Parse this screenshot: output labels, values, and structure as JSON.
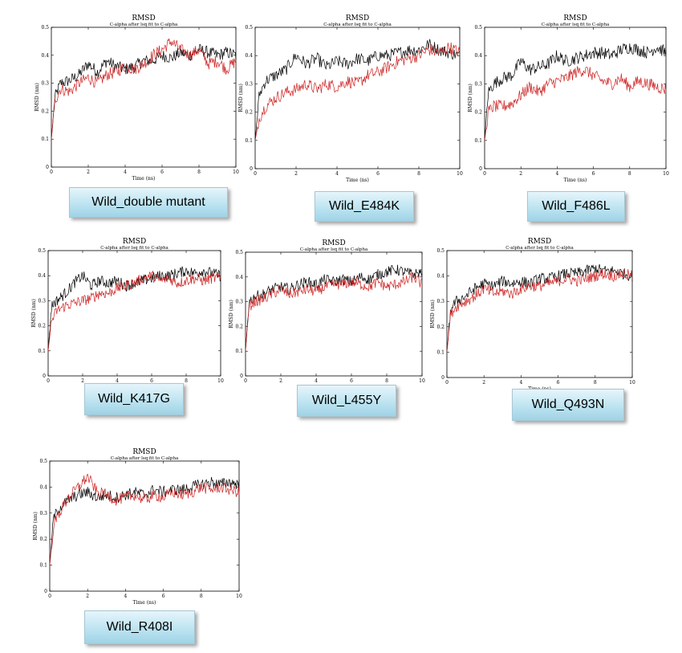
{
  "chart_data": [
    {
      "type": "line",
      "title": "RMSD",
      "subtitle": "C-alpha after lsq fit to C-alpha",
      "xlabel": "Time (ns)",
      "ylabel": "RMSD (nm)",
      "xlim": [
        0,
        10
      ],
      "ylim": [
        0,
        0.5
      ],
      "xticks": [
        "0",
        "2",
        "4",
        "6",
        "8",
        "10"
      ],
      "yticks": [
        "0",
        "0.1",
        "0.2",
        "0.3",
        "0.4",
        "0.5"
      ],
      "caption": "Wild_double mutant",
      "series": [
        {
          "color": "#000000",
          "x": [
            0,
            0.2,
            0.5,
            1,
            1.5,
            2,
            2.5,
            3,
            3.5,
            4,
            4.5,
            5,
            5.5,
            6,
            6.5,
            7,
            7.5,
            8,
            8.5,
            9,
            9.5,
            10
          ],
          "y": [
            0.1,
            0.25,
            0.3,
            0.31,
            0.33,
            0.37,
            0.34,
            0.38,
            0.36,
            0.35,
            0.36,
            0.38,
            0.38,
            0.4,
            0.39,
            0.41,
            0.4,
            0.42,
            0.41,
            0.4,
            0.41,
            0.4
          ]
        },
        {
          "color": "#cc2222",
          "x": [
            0,
            0.2,
            0.5,
            1,
            1.5,
            2,
            2.5,
            3,
            3.5,
            4,
            4.5,
            5,
            5.5,
            6,
            6.5,
            7,
            7.5,
            8,
            8.5,
            9,
            9.5,
            10
          ],
          "y": [
            0.1,
            0.24,
            0.28,
            0.27,
            0.3,
            0.32,
            0.3,
            0.33,
            0.34,
            0.36,
            0.35,
            0.37,
            0.4,
            0.42,
            0.45,
            0.42,
            0.4,
            0.42,
            0.37,
            0.38,
            0.35,
            0.38
          ]
        }
      ]
    },
    {
      "type": "line",
      "title": "RMSD",
      "subtitle": "C-alpha after lsq fit to C-alpha",
      "xlabel": "Time (ns)",
      "ylabel": "RMSD (nm)",
      "xlim": [
        0,
        10
      ],
      "ylim": [
        0,
        0.5
      ],
      "xticks": [
        "0",
        "2",
        "4",
        "6",
        "8",
        "10"
      ],
      "yticks": [
        "0",
        "0.1",
        "0.2",
        "0.3",
        "0.4",
        "0.5"
      ],
      "caption": "Wild_E484K",
      "series": [
        {
          "color": "#000000",
          "x": [
            0,
            0.2,
            0.5,
            1,
            1.5,
            2,
            2.5,
            3,
            3.5,
            4,
            4.5,
            5,
            5.5,
            6,
            6.5,
            7,
            7.5,
            8,
            8.5,
            9,
            9.5,
            10
          ],
          "y": [
            0.1,
            0.26,
            0.31,
            0.33,
            0.35,
            0.4,
            0.37,
            0.39,
            0.36,
            0.38,
            0.37,
            0.39,
            0.38,
            0.4,
            0.4,
            0.41,
            0.42,
            0.42,
            0.44,
            0.42,
            0.41,
            0.4
          ]
        },
        {
          "color": "#cc2222",
          "x": [
            0,
            0.2,
            0.5,
            1,
            1.5,
            2,
            2.5,
            3,
            3.5,
            4,
            4.5,
            5,
            5.5,
            6,
            6.5,
            7,
            7.5,
            8,
            8.5,
            9,
            9.5,
            10
          ],
          "y": [
            0.1,
            0.18,
            0.22,
            0.25,
            0.27,
            0.28,
            0.3,
            0.28,
            0.3,
            0.29,
            0.31,
            0.3,
            0.33,
            0.34,
            0.36,
            0.38,
            0.39,
            0.4,
            0.42,
            0.41,
            0.43,
            0.41
          ]
        }
      ]
    },
    {
      "type": "line",
      "title": "RMSD",
      "subtitle": "C-alpha after lsq fit to C-alpha",
      "xlabel": "Time (ns)",
      "ylabel": "RMSD (nm)",
      "xlim": [
        0,
        10
      ],
      "ylim": [
        0,
        0.5
      ],
      "xticks": [
        "0",
        "2",
        "4",
        "6",
        "8",
        "10"
      ],
      "yticks": [
        "0",
        "0.1",
        "0.2",
        "0.3",
        "0.4",
        "0.5"
      ],
      "caption": "Wild_F486L",
      "series": [
        {
          "color": "#000000",
          "x": [
            0,
            0.2,
            0.5,
            1,
            1.5,
            2,
            2.5,
            3,
            3.5,
            4,
            4.5,
            5,
            5.5,
            6,
            6.5,
            7,
            7.5,
            8,
            8.5,
            9,
            9.5,
            10
          ],
          "y": [
            0.1,
            0.27,
            0.3,
            0.32,
            0.33,
            0.38,
            0.35,
            0.36,
            0.37,
            0.4,
            0.38,
            0.39,
            0.4,
            0.41,
            0.41,
            0.4,
            0.42,
            0.43,
            0.42,
            0.41,
            0.43,
            0.41
          ]
        },
        {
          "color": "#cc2222",
          "x": [
            0,
            0.2,
            0.5,
            1,
            1.5,
            2,
            2.5,
            3,
            3.5,
            4,
            4.5,
            5,
            5.5,
            6,
            6.5,
            7,
            7.5,
            8,
            8.5,
            9,
            9.5,
            10
          ],
          "y": [
            0.1,
            0.2,
            0.22,
            0.22,
            0.23,
            0.26,
            0.29,
            0.27,
            0.3,
            0.31,
            0.32,
            0.34,
            0.35,
            0.33,
            0.31,
            0.3,
            0.32,
            0.29,
            0.31,
            0.3,
            0.29,
            0.28
          ]
        }
      ]
    },
    {
      "type": "line",
      "title": "RMSD",
      "subtitle": "C-alpha after lsq fit to C-alpha",
      "xlabel": "Time (ns)",
      "ylabel": "RMSD (nm)",
      "xlim": [
        0,
        10
      ],
      "ylim": [
        0,
        0.5
      ],
      "xticks": [
        "0",
        "2",
        "4",
        "6",
        "8",
        "10"
      ],
      "yticks": [
        "0",
        "0.1",
        "0.2",
        "0.3",
        "0.4",
        "0.5"
      ],
      "caption": "Wild_K417G",
      "series": [
        {
          "color": "#000000",
          "x": [
            0,
            0.2,
            0.5,
            1,
            1.5,
            2,
            2.5,
            3,
            3.5,
            4,
            4.5,
            5,
            5.5,
            6,
            6.5,
            7,
            7.5,
            8,
            8.5,
            9,
            9.5,
            10
          ],
          "y": [
            0.1,
            0.28,
            0.3,
            0.33,
            0.37,
            0.4,
            0.36,
            0.38,
            0.37,
            0.38,
            0.36,
            0.37,
            0.38,
            0.39,
            0.4,
            0.4,
            0.41,
            0.42,
            0.41,
            0.42,
            0.41,
            0.4
          ]
        },
        {
          "color": "#cc2222",
          "x": [
            0,
            0.2,
            0.5,
            1,
            1.5,
            2,
            2.5,
            3,
            3.5,
            4,
            4.5,
            5,
            5.5,
            6,
            6.5,
            7,
            7.5,
            8,
            8.5,
            9,
            9.5,
            10
          ],
          "y": [
            0.1,
            0.22,
            0.26,
            0.28,
            0.29,
            0.3,
            0.31,
            0.33,
            0.33,
            0.35,
            0.36,
            0.37,
            0.39,
            0.4,
            0.38,
            0.39,
            0.37,
            0.38,
            0.39,
            0.38,
            0.39,
            0.39
          ]
        }
      ]
    },
    {
      "type": "line",
      "title": "RMSD",
      "subtitle": "C-alpha after lsq fit to C-alpha",
      "xlabel": "Time (ns)",
      "ylabel": "RMSD (nm)",
      "xlim": [
        0,
        10
      ],
      "ylim": [
        0,
        0.5
      ],
      "xticks": [
        "0",
        "2",
        "4",
        "6",
        "8",
        "10"
      ],
      "yticks": [
        "0",
        "0.1",
        "0.2",
        "0.3",
        "0.4",
        "0.5"
      ],
      "caption": "Wild_L455Y",
      "series": [
        {
          "color": "#000000",
          "x": [
            0,
            0.2,
            0.5,
            1,
            1.5,
            2,
            2.5,
            3,
            3.5,
            4,
            4.5,
            5,
            5.5,
            6,
            6.5,
            7,
            7.5,
            8,
            8.5,
            9,
            9.5,
            10
          ],
          "y": [
            0.1,
            0.3,
            0.32,
            0.33,
            0.35,
            0.36,
            0.35,
            0.37,
            0.38,
            0.37,
            0.39,
            0.38,
            0.39,
            0.38,
            0.4,
            0.39,
            0.41,
            0.42,
            0.43,
            0.42,
            0.41,
            0.42
          ]
        },
        {
          "color": "#cc2222",
          "x": [
            0,
            0.2,
            0.5,
            1,
            1.5,
            2,
            2.5,
            3,
            3.5,
            4,
            4.5,
            5,
            5.5,
            6,
            6.5,
            7,
            7.5,
            8,
            8.5,
            9,
            9.5,
            10
          ],
          "y": [
            0.1,
            0.28,
            0.3,
            0.31,
            0.33,
            0.35,
            0.33,
            0.34,
            0.35,
            0.34,
            0.36,
            0.37,
            0.37,
            0.38,
            0.37,
            0.36,
            0.38,
            0.36,
            0.37,
            0.38,
            0.4,
            0.37
          ]
        }
      ]
    },
    {
      "type": "line",
      "title": "RMSD",
      "subtitle": "C-alpha after lsq fit to C-alpha",
      "xlabel": "Time (ns)",
      "ylabel": "RMSD (nm)",
      "xlim": [
        0,
        10
      ],
      "ylim": [
        0,
        0.5
      ],
      "xticks": [
        "0",
        "2",
        "4",
        "6",
        "8",
        "10"
      ],
      "yticks": [
        "0",
        "0.1",
        "0.2",
        "0.3",
        "0.4",
        "0.5"
      ],
      "caption": "Wild_Q493N",
      "series": [
        {
          "color": "#000000",
          "x": [
            0,
            0.2,
            0.5,
            1,
            1.5,
            2,
            2.5,
            3,
            3.5,
            4,
            4.5,
            5,
            5.5,
            6,
            6.5,
            7,
            7.5,
            8,
            8.5,
            9,
            9.5,
            10
          ],
          "y": [
            0.1,
            0.27,
            0.3,
            0.32,
            0.35,
            0.37,
            0.36,
            0.38,
            0.37,
            0.38,
            0.37,
            0.39,
            0.39,
            0.4,
            0.41,
            0.41,
            0.42,
            0.43,
            0.42,
            0.42,
            0.41,
            0.4
          ]
        },
        {
          "color": "#cc2222",
          "x": [
            0,
            0.2,
            0.5,
            1,
            1.5,
            2,
            2.5,
            3,
            3.5,
            4,
            4.5,
            5,
            5.5,
            6,
            6.5,
            7,
            7.5,
            8,
            8.5,
            9,
            9.5,
            10
          ],
          "y": [
            0.1,
            0.25,
            0.28,
            0.3,
            0.32,
            0.35,
            0.33,
            0.34,
            0.33,
            0.35,
            0.36,
            0.36,
            0.37,
            0.38,
            0.39,
            0.38,
            0.39,
            0.4,
            0.41,
            0.4,
            0.41,
            0.4
          ]
        }
      ]
    },
    {
      "type": "line",
      "title": "RMSD",
      "subtitle": "C-alpha after lsq fit to C-alpha",
      "xlabel": "Time (ns)",
      "ylabel": "RMSD (nm)",
      "xlim": [
        0,
        10
      ],
      "ylim": [
        0,
        0.5
      ],
      "xticks": [
        "0",
        "2",
        "4",
        "6",
        "8",
        "10"
      ],
      "yticks": [
        "0",
        "0.1",
        "0.2",
        "0.3",
        "0.4",
        "0.5"
      ],
      "caption": "Wild_R408I",
      "series": [
        {
          "color": "#000000",
          "x": [
            0,
            0.2,
            0.5,
            1,
            1.5,
            2,
            2.5,
            3,
            3.5,
            4,
            4.5,
            5,
            5.5,
            6,
            6.5,
            7,
            7.5,
            8,
            8.5,
            9,
            9.5,
            10
          ],
          "y": [
            0.1,
            0.28,
            0.32,
            0.35,
            0.37,
            0.38,
            0.36,
            0.37,
            0.36,
            0.37,
            0.38,
            0.37,
            0.39,
            0.38,
            0.39,
            0.39,
            0.4,
            0.41,
            0.42,
            0.41,
            0.42,
            0.41
          ]
        },
        {
          "color": "#cc2222",
          "x": [
            0,
            0.2,
            0.5,
            1,
            1.5,
            2,
            2.5,
            3,
            3.5,
            4,
            4.5,
            5,
            5.5,
            6,
            6.5,
            7,
            7.5,
            8,
            8.5,
            9,
            9.5,
            10
          ],
          "y": [
            0.1,
            0.25,
            0.3,
            0.36,
            0.4,
            0.44,
            0.38,
            0.37,
            0.35,
            0.36,
            0.37,
            0.35,
            0.37,
            0.36,
            0.38,
            0.37,
            0.38,
            0.4,
            0.39,
            0.4,
            0.39,
            0.38
          ]
        }
      ]
    }
  ]
}
